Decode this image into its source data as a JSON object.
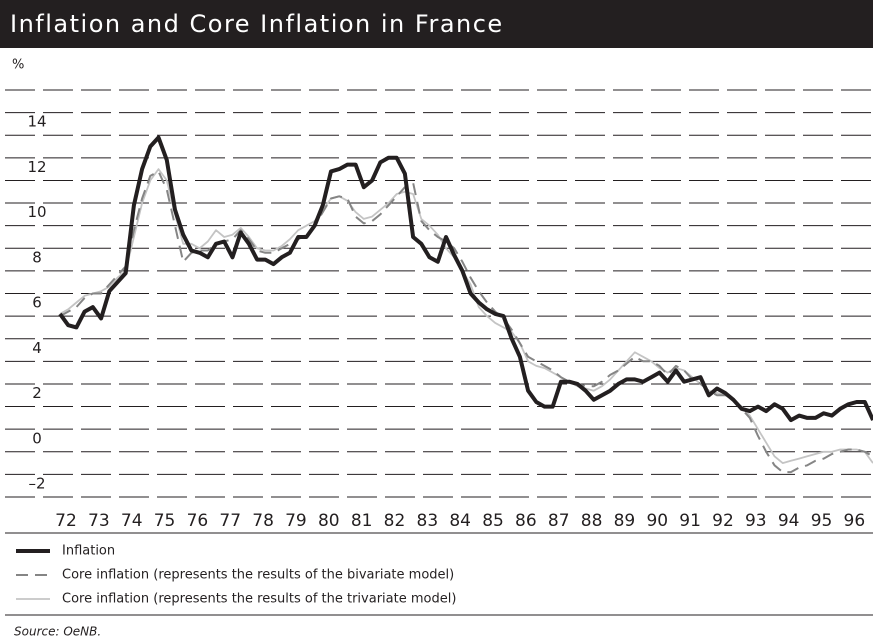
{
  "chart_data": {
    "type": "line",
    "title": "Inflation and Core Inflation in France",
    "y_label": "%",
    "source": "Source: OeNB.",
    "x": [
      1972,
      1972.25,
      1972.5,
      1972.75,
      1973,
      1973.25,
      1973.5,
      1973.75,
      1974,
      1974.25,
      1974.5,
      1974.75,
      1975,
      1975.25,
      1975.5,
      1975.75,
      1976,
      1976.25,
      1976.5,
      1976.75,
      1977,
      1977.25,
      1977.5,
      1977.75,
      1978,
      1978.25,
      1978.5,
      1978.75,
      1979,
      1979.25,
      1979.5,
      1979.75,
      1980,
      1980.25,
      1980.5,
      1980.75,
      1981,
      1981.25,
      1981.5,
      1981.75,
      1982,
      1982.25,
      1982.5,
      1982.75,
      1983,
      1983.25,
      1983.5,
      1983.75,
      1984,
      1984.25,
      1984.5,
      1984.75,
      1985,
      1985.25,
      1985.5,
      1985.75,
      1986,
      1986.25,
      1986.5,
      1986.75,
      1987,
      1987.25,
      1987.5,
      1987.75,
      1988,
      1988.25,
      1988.5,
      1988.75,
      1989,
      1989.25,
      1989.5,
      1989.75,
      1990,
      1990.25,
      1990.5,
      1990.75,
      1991,
      1991.25,
      1991.5,
      1991.75,
      1992,
      1992.25,
      1992.5,
      1992.75,
      1993,
      1993.25,
      1993.5,
      1993.75,
      1994,
      1994.25,
      1994.5,
      1994.75,
      1995,
      1995.25,
      1995.5,
      1995.75,
      1996,
      1996.25,
      1996.5,
      1996.75
    ],
    "series": [
      {
        "name": "Core inflation (represents the results of the trivariate model)",
        "color": "#c4c4c4",
        "style": "solid",
        "width": 1.8,
        "values": [
          6.1,
          6.3,
          6.6,
          6.9,
          7.0,
          7.1,
          7.3,
          7.7,
          8.0,
          9.5,
          11.0,
          12.0,
          12.5,
          12.0,
          10.5,
          9.2,
          9.2,
          9.0,
          9.3,
          9.8,
          9.5,
          9.6,
          9.9,
          9.5,
          9.0,
          8.9,
          8.9,
          9.1,
          9.4,
          9.8,
          10.0,
          10.2,
          10.7,
          11.2,
          11.3,
          11.1,
          10.6,
          10.3,
          10.4,
          10.7,
          11.0,
          11.4,
          11.5,
          11.4,
          10.3,
          10.0,
          9.6,
          9.0,
          8.6,
          8.0,
          7.4,
          6.4,
          6.0,
          5.7,
          5.5,
          5.3,
          4.8,
          4.0,
          3.8,
          3.7,
          3.5,
          3.3,
          3.1,
          2.9,
          2.8,
          2.7,
          2.9,
          3.2,
          3.6,
          4.0,
          4.4,
          4.2,
          4.0,
          3.7,
          3.5,
          3.7,
          3.6,
          3.3,
          3.0,
          2.7,
          2.6,
          2.5,
          2.3,
          2.0,
          1.6,
          1.0,
          0.4,
          -0.2,
          -0.5,
          -0.4,
          -0.3,
          -0.2,
          -0.1,
          0.0,
          0.0,
          0.1,
          0.1,
          0.1,
          0.0,
          -0.5
        ]
      },
      {
        "name": "Core inflation (represents the results of the bivariate model)",
        "color": "#858585",
        "style": "dashed",
        "width": 2,
        "values": [
          6.0,
          6.2,
          6.4,
          6.8,
          7.0,
          7.0,
          7.4,
          7.8,
          8.2,
          9.8,
          11.2,
          12.2,
          12.4,
          11.6,
          10.0,
          8.4,
          8.8,
          8.9,
          8.9,
          9.2,
          9.3,
          9.4,
          9.8,
          9.4,
          8.9,
          8.8,
          8.8,
          9.0,
          9.2,
          9.4,
          9.6,
          10.0,
          10.6,
          11.2,
          11.3,
          11.2,
          10.4,
          10.1,
          10.2,
          10.5,
          10.9,
          11.3,
          11.7,
          11.9,
          10.2,
          9.8,
          9.5,
          9.3,
          9.0,
          8.4,
          7.7,
          7.1,
          6.6,
          6.2,
          5.9,
          5.4,
          4.8,
          4.2,
          4.0,
          3.8,
          3.6,
          3.3,
          3.1,
          3.0,
          2.9,
          2.9,
          3.1,
          3.4,
          3.6,
          3.9,
          4.2,
          4.0,
          4.0,
          3.8,
          3.4,
          3.8,
          3.6,
          3.2,
          3.0,
          2.7,
          2.5,
          2.5,
          2.3,
          1.9,
          1.5,
          0.7,
          0.0,
          -0.6,
          -0.9,
          -0.9,
          -0.7,
          -0.6,
          -0.4,
          -0.3,
          -0.1,
          0.0,
          0.1,
          0.1,
          0.0,
          -0.2
        ]
      },
      {
        "name": "Inflation",
        "color": "#231f20",
        "style": "solid",
        "width": 4,
        "values": [
          6.1,
          5.6,
          5.5,
          6.2,
          6.4,
          5.9,
          7.1,
          7.5,
          7.9,
          10.9,
          12.5,
          13.5,
          13.9,
          12.9,
          10.7,
          9.6,
          8.9,
          8.8,
          8.6,
          9.2,
          9.3,
          8.6,
          9.7,
          9.2,
          8.5,
          8.5,
          8.3,
          8.6,
          8.8,
          9.5,
          9.5,
          10.0,
          10.9,
          12.4,
          12.5,
          12.7,
          12.7,
          11.7,
          12.0,
          12.8,
          13.0,
          13.0,
          12.3,
          9.5,
          9.2,
          8.6,
          8.4,
          9.5,
          8.7,
          8.0,
          7.0,
          6.6,
          6.3,
          6.1,
          6.0,
          5.0,
          4.2,
          2.7,
          2.2,
          2.0,
          2.0,
          3.1,
          3.1,
          3.0,
          2.7,
          2.3,
          2.5,
          2.7,
          3.0,
          3.2,
          3.2,
          3.1,
          3.3,
          3.5,
          3.1,
          3.6,
          3.1,
          3.2,
          3.3,
          2.5,
          2.8,
          2.6,
          2.3,
          1.9,
          1.8,
          2.0,
          1.8,
          2.1,
          1.9,
          1.4,
          1.6,
          1.5,
          1.5,
          1.7,
          1.6,
          1.9,
          2.1,
          2.2,
          2.2,
          1.4
        ]
      }
    ],
    "legend_order": [
      2,
      1,
      0
    ],
    "xlim": [
      1972,
      1996.75
    ],
    "xticks": [
      {
        "value": 1972,
        "label": "72"
      },
      {
        "value": 1973,
        "label": "73"
      },
      {
        "value": 1974,
        "label": "74"
      },
      {
        "value": 1975,
        "label": "75"
      },
      {
        "value": 1976,
        "label": "76"
      },
      {
        "value": 1977,
        "label": "77"
      },
      {
        "value": 1978,
        "label": "78"
      },
      {
        "value": 1979,
        "label": "79"
      },
      {
        "value": 1980,
        "label": "80"
      },
      {
        "value": 1981,
        "label": "81"
      },
      {
        "value": 1982,
        "label": "82"
      },
      {
        "value": 1983,
        "label": "83"
      },
      {
        "value": 1984,
        "label": "84"
      },
      {
        "value": 1985,
        "label": "85"
      },
      {
        "value": 1986,
        "label": "86"
      },
      {
        "value": 1987,
        "label": "87"
      },
      {
        "value": 1988,
        "label": "88"
      },
      {
        "value": 1989,
        "label": "89"
      },
      {
        "value": 1990,
        "label": "90"
      },
      {
        "value": 1991,
        "label": "91"
      },
      {
        "value": 1992,
        "label": "92"
      },
      {
        "value": 1993,
        "label": "93"
      },
      {
        "value": 1994,
        "label": "94"
      },
      {
        "value": 1995,
        "label": "95"
      },
      {
        "value": 1996,
        "label": "96"
      }
    ],
    "ylim": [
      -2,
      16
    ],
    "yticks": [
      {
        "value": -2,
        "label": "–2"
      },
      0,
      2,
      4,
      6,
      8,
      10,
      12,
      14
    ],
    "minor_yticks": [
      -1,
      1,
      3,
      5,
      7,
      9,
      11,
      13,
      15,
      16
    ],
    "grid": true
  }
}
